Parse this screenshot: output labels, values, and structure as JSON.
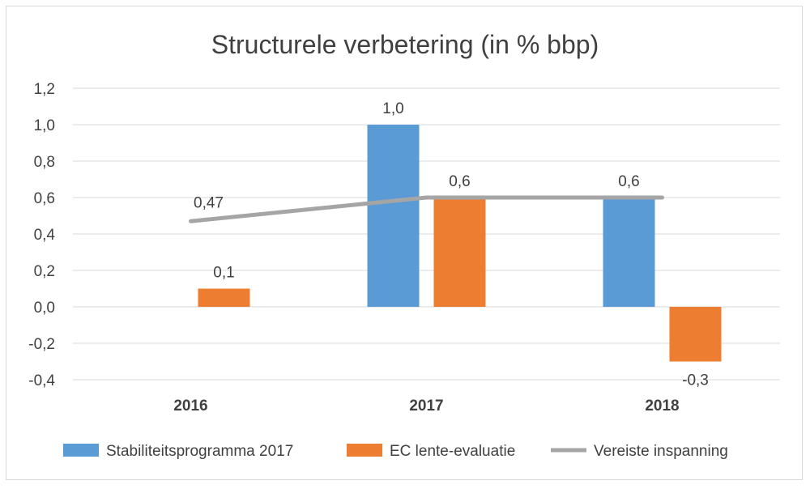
{
  "chart_data": {
    "type": "bar",
    "title": "Structurele verbetering (in % bbp)",
    "categories": [
      "2016",
      "2017",
      "2018"
    ],
    "ylim": [
      -0.4,
      1.2
    ],
    "yticks": [
      "1,2",
      "1,0",
      "0,8",
      "0,6",
      "0,4",
      "0,2",
      "0,0",
      "-0,2",
      "-0,4"
    ],
    "grid": true,
    "legend_position": "bottom",
    "series": [
      {
        "name": "Stabiliteitsprogramma 2017",
        "kind": "bar",
        "color": "#5b9bd5",
        "values": [
          null,
          1.0,
          0.6
        ],
        "labels": [
          "",
          "1,0",
          "0,6"
        ]
      },
      {
        "name": "EC lente-evaluatie",
        "kind": "bar",
        "color": "#ed7d31",
        "values": [
          0.1,
          0.6,
          -0.3
        ],
        "labels": [
          "0,1",
          "0,6",
          "-0,3"
        ]
      },
      {
        "name": "Vereiste inspanning",
        "kind": "line",
        "color": "#a5a5a5",
        "values": [
          0.47,
          0.6,
          0.6
        ],
        "labels": [
          "0,47",
          "",
          ""
        ]
      }
    ]
  }
}
